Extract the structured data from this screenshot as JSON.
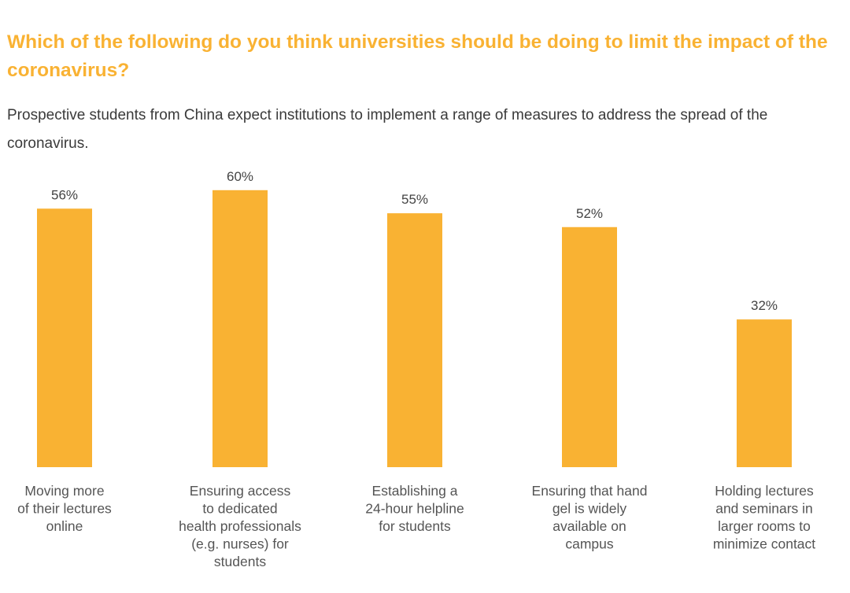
{
  "page": {
    "title": "Which of the following do you think universities should be doing to limit the impact of the coronavirus?",
    "subtitle": "Prospective students from China expect institutions to implement a range of measures to address the spread of the coronavirus."
  },
  "chart_data": {
    "type": "bar",
    "title": "Which of the following do you think universities should be doing to limit the impact of the coronavirus?",
    "subtitle": "Prospective students from China expect institutions to implement a range of measures to address the spread of the coronavirus.",
    "xlabel": "",
    "ylabel": "",
    "ylim": [
      0,
      60
    ],
    "grid": false,
    "legend": "none",
    "bar_color": "#f9b233",
    "categories": [
      [
        "Moving more",
        "of their lectures",
        "online"
      ],
      [
        "Ensuring access",
        "to dedicated",
        "health professionals",
        "(e.g. nurses) for",
        "students"
      ],
      [
        "Establishing a",
        "24-hour helpline",
        "for students"
      ],
      [
        "Ensuring that hand",
        "gel is widely",
        "available on",
        "campus"
      ],
      [
        "Holding lectures",
        "and seminars in",
        "larger rooms to",
        "minimize contact"
      ]
    ],
    "values": [
      56,
      60,
      55,
      52,
      32
    ],
    "value_labels": [
      "56%",
      "60%",
      "55%",
      "52%",
      "32%"
    ]
  }
}
